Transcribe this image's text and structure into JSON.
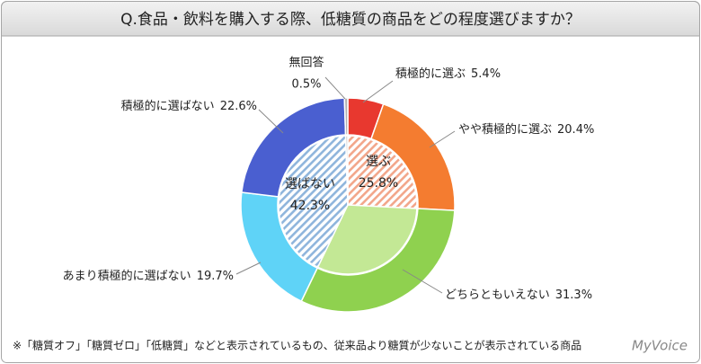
{
  "chart_data": {
    "type": "donut",
    "title": "Q.食品・飲料を購入する際、低糖質の商品をどの程度選びますか？",
    "footnote": "※「糖質オフ」「糖質ゼロ」「低糖質」などと表示されているもの、従来品より糖質が少ないことが表示されている商品",
    "logo": "MyVoice",
    "rings": [
      {
        "categories": [
          "積極的に選ぶ",
          "やや積極的に選ぶ",
          "どちらともいえない",
          "あまり積極的に選ばない",
          "積極的に選ばない",
          "無回答"
        ],
        "values": [
          5.4,
          20.4,
          31.3,
          19.7,
          22.6,
          0.5
        ],
        "value_labels": [
          "5.4%",
          "20.4%",
          "31.3%",
          "19.7%",
          "22.6%",
          "0.5%"
        ],
        "colors": [
          "#e8382f",
          "#f47c30",
          "#8fd14f",
          "#5fd3f7",
          "#4a5fd0",
          "#b0b0b0"
        ],
        "hatched": [
          false,
          false,
          false,
          false,
          false,
          false
        ]
      },
      {
        "categories": [
          "選ぶ",
          null,
          "選ばない",
          null
        ],
        "values": [
          25.8,
          31.3,
          42.3,
          0.5
        ],
        "value_labels": [
          "25.8%",
          null,
          "42.3%",
          null
        ],
        "colors": [
          "#f2a68a",
          "#c3e895",
          "#8fb5dc",
          "#c8c8c8"
        ],
        "hatched": [
          true,
          false,
          true,
          false
        ]
      }
    ]
  }
}
